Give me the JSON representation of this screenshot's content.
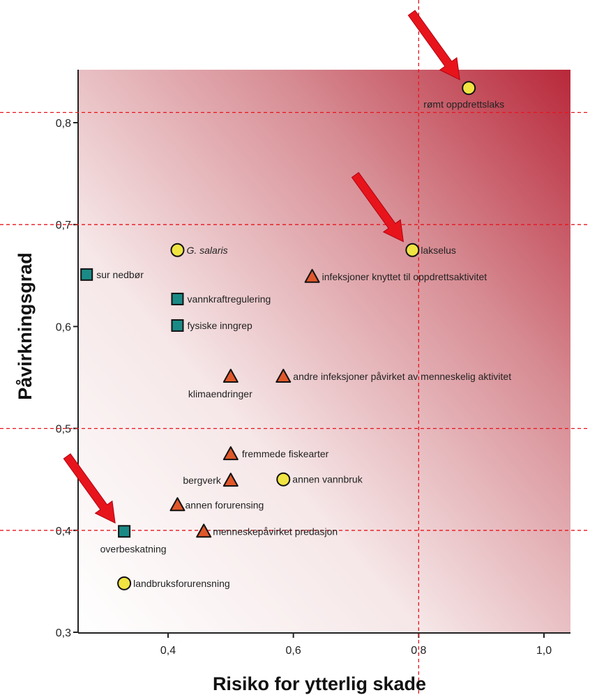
{
  "chart_data": {
    "type": "scatter",
    "xlabel": "Risiko for ytterlig skade",
    "ylabel": "Påvirkningsgrad",
    "xlim": [
      0.25,
      1.04
    ],
    "ylim": [
      0.3,
      0.855
    ],
    "x_ticks": [
      "0,4",
      "0,6",
      "0,8",
      "1,0"
    ],
    "y_ticks": [
      "0,3",
      "0,4",
      "0,5",
      "0,6",
      "0,7",
      "0,8"
    ],
    "background": "gradient from white (bottom-left) to dark red (top-right)",
    "gradient_color": "#b8283a",
    "reference_lines": {
      "x": [
        0.8
      ],
      "y": [
        0.4,
        0.5,
        0.7,
        0.81
      ],
      "color": "#e8141c",
      "style": "dashed"
    },
    "arrows": {
      "color": "#e8141c",
      "targets": [
        "rømt oppdrettslaks",
        "lakselus",
        "overbeskatning"
      ]
    },
    "marker_colors": {
      "circle": "#f0e442",
      "square": "#1a8a86",
      "triangle": "#e0572a"
    },
    "points": [
      {
        "label": "rømt oppdrettslaks",
        "x": 0.88,
        "y": 0.834,
        "marker": "circle",
        "italic": false
      },
      {
        "label": "G. salaris",
        "x": 0.415,
        "y": 0.675,
        "marker": "circle",
        "italic": true
      },
      {
        "label": "lakselus",
        "x": 0.79,
        "y": 0.675,
        "marker": "circle",
        "italic": false
      },
      {
        "label": "sur nedbør",
        "x": 0.27,
        "y": 0.651,
        "marker": "square",
        "italic": false
      },
      {
        "label": "infeksjoner knyttet til oppdrettsaktivitet",
        "x": 0.63,
        "y": 0.649,
        "marker": "triangle",
        "italic": false
      },
      {
        "label": "vannkraftregulering",
        "x": 0.415,
        "y": 0.627,
        "marker": "square",
        "italic": false
      },
      {
        "label": "fysiske inngrep",
        "x": 0.415,
        "y": 0.601,
        "marker": "square",
        "italic": false
      },
      {
        "label": "klimaendringer",
        "x": 0.5,
        "y": 0.551,
        "marker": "triangle",
        "italic": false
      },
      {
        "label": "andre infeksjoner påvirket av menneskelig aktivitet",
        "x": 0.584,
        "y": 0.551,
        "marker": "triangle",
        "italic": false
      },
      {
        "label": "fremmede fiskearter",
        "x": 0.5,
        "y": 0.475,
        "marker": "triangle",
        "italic": false
      },
      {
        "label": "bergverk",
        "x": 0.5,
        "y": 0.449,
        "marker": "triangle",
        "italic": false
      },
      {
        "label": "annen vannbruk",
        "x": 0.584,
        "y": 0.45,
        "marker": "circle",
        "italic": false
      },
      {
        "label": "annen forurensing",
        "x": 0.415,
        "y": 0.425,
        "marker": "triangle",
        "italic": false
      },
      {
        "label": "overbeskatning",
        "x": 0.33,
        "y": 0.399,
        "marker": "square",
        "italic": false
      },
      {
        "label": "menneskepåvirket predasjon",
        "x": 0.457,
        "y": 0.399,
        "marker": "triangle",
        "italic": false
      },
      {
        "label": "landbruksforurensning",
        "x": 0.33,
        "y": 0.348,
        "marker": "circle",
        "italic": false
      }
    ]
  }
}
